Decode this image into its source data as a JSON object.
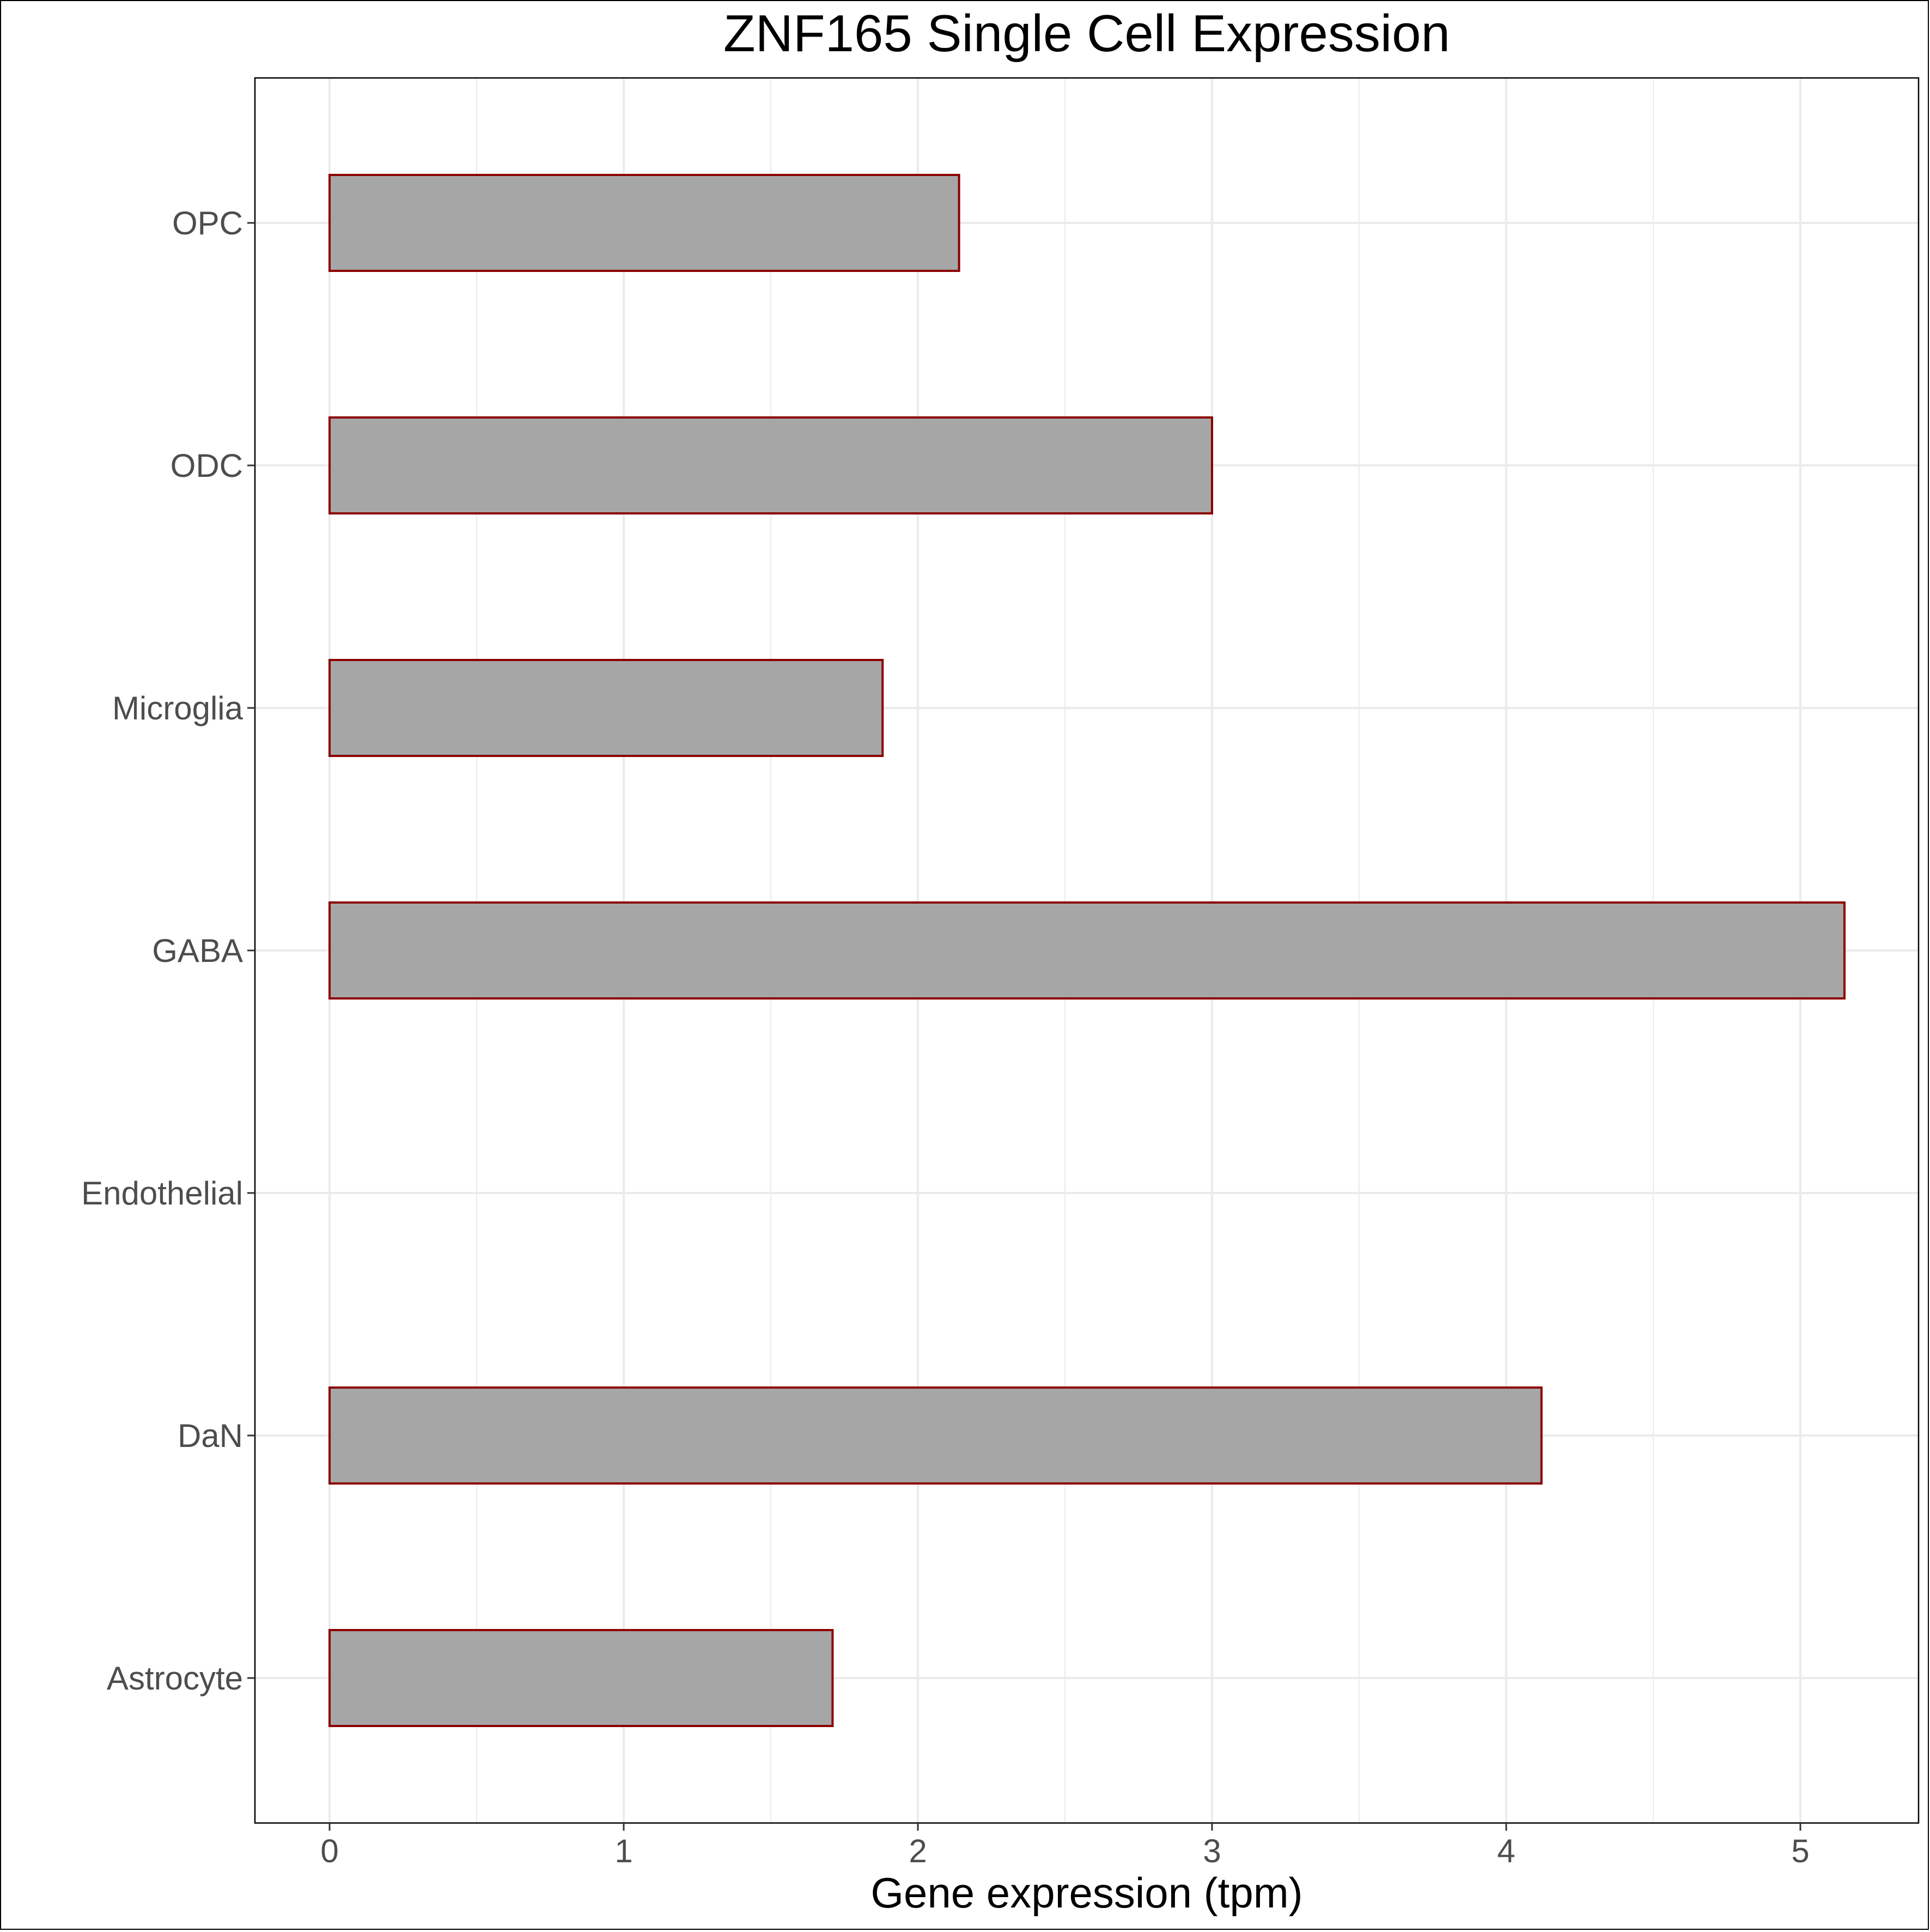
{
  "chart_data": {
    "type": "bar",
    "orientation": "horizontal",
    "title": "ZNF165 Single Cell Expression",
    "xlabel": "Gene expression (tpm)",
    "ylabel": "",
    "categories": [
      "Astrocyte",
      "DaN",
      "Endothelial",
      "GABA",
      "Microglia",
      "ODC",
      "OPC"
    ],
    "values": [
      1.71,
      4.12,
      0.0,
      5.15,
      1.88,
      3.0,
      2.14
    ],
    "xlim": [
      -0.25,
      5.4
    ],
    "xticks": [
      0,
      1,
      2,
      3,
      4,
      5
    ],
    "grid": true,
    "legend": "none",
    "colors": {
      "bar_fill": "#a6a6a6",
      "bar_stroke": "#8b0000",
      "grid": "#ebebeb",
      "panel_border": "#000000",
      "tick_text": "#4d4d4d"
    }
  }
}
